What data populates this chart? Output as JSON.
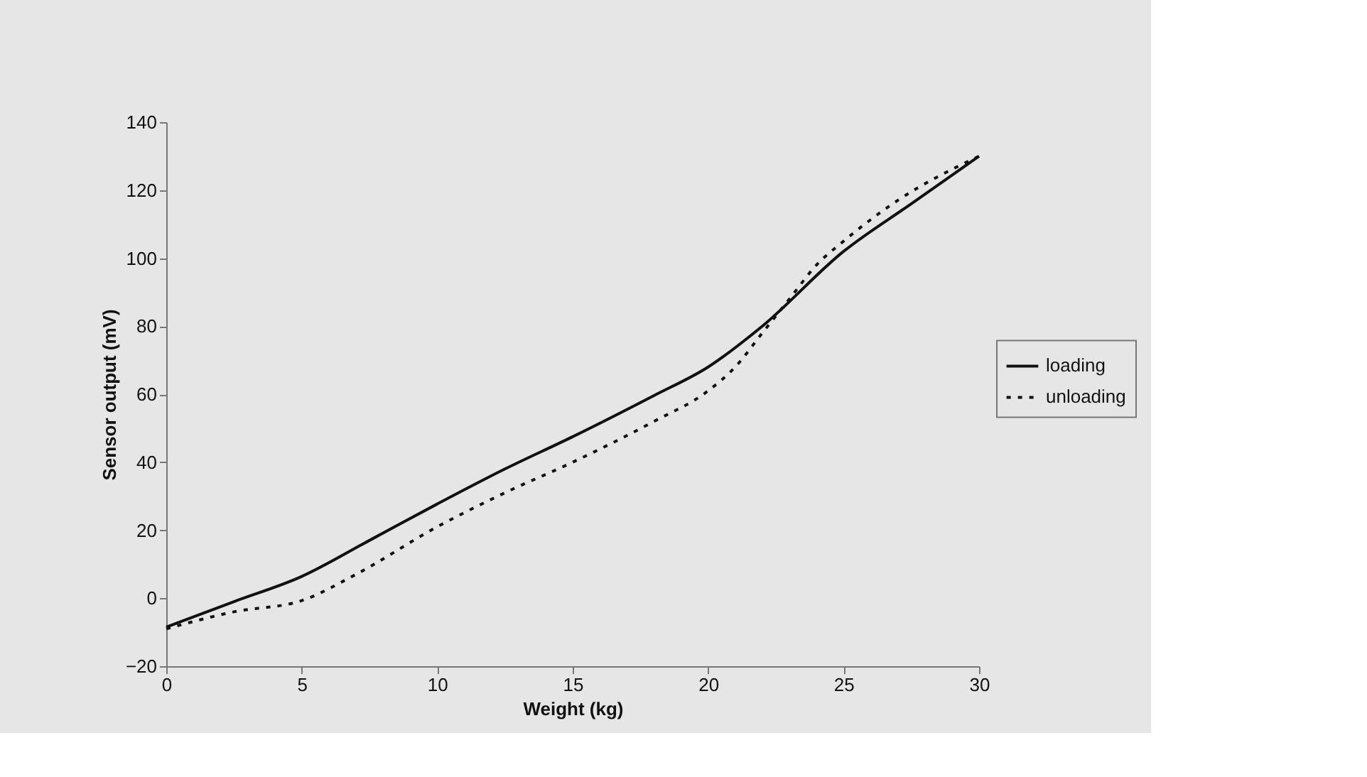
{
  "chart_data": {
    "type": "line",
    "xlabel": "Weight (kg)",
    "ylabel": "Sensor output (mV)",
    "xlim": [
      0,
      30
    ],
    "xticks": [
      0,
      5,
      10,
      15,
      20,
      25,
      30
    ],
    "ylim": [
      -20,
      140
    ],
    "yticks": [
      -20,
      0,
      20,
      40,
      60,
      80,
      100,
      120,
      140
    ],
    "grid": false,
    "legend": "right",
    "marker": "none",
    "series": [
      {
        "name": "loading",
        "color": "#111111",
        "line_style": "solid",
        "x": [
          0,
          2.5,
          5,
          7.5,
          10,
          12.5,
          15,
          18,
          20,
          22,
          25,
          27.5,
          30
        ],
        "values": [
          -8.5,
          -1,
          6.4,
          17,
          27.7,
          38,
          47.5,
          59.6,
          68,
          80,
          102,
          116,
          130
        ]
      },
      {
        "name": "unloading",
        "color": "#111111",
        "line_style": "dotted",
        "x": [
          0,
          2.5,
          5,
          7,
          10,
          12.5,
          15,
          18,
          20,
          21,
          22,
          23,
          24,
          25,
          27,
          30
        ],
        "values": [
          -9,
          -4,
          -0.7,
          7,
          21,
          31,
          40,
          52,
          61,
          68,
          78,
          88,
          98,
          105,
          117,
          130
        ]
      }
    ]
  }
}
